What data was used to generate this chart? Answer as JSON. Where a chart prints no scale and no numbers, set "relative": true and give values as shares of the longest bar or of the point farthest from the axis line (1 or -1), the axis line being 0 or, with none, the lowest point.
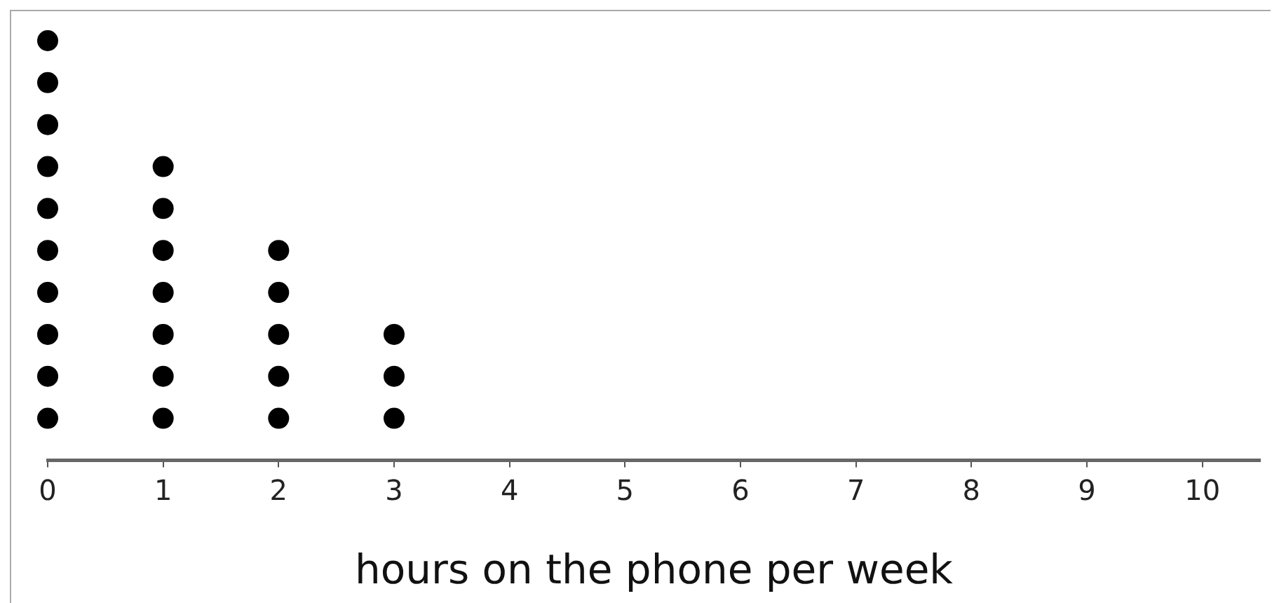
{
  "chart_data": {
    "type": "scatter",
    "xlabel": "hours on the phone per week",
    "relative": true,
    "marker": "circle",
    "color": "#000000",
    "x": [
      0,
      0,
      0,
      0,
      0,
      0,
      0,
      0,
      0,
      0,
      1,
      1,
      1,
      1,
      1,
      1,
      1,
      2,
      2,
      2,
      2,
      2,
      3,
      3,
      3
    ],
    "values": [
      0.1,
      0.2,
      0.3,
      0.4,
      0.5,
      0.6,
      0.7,
      0.8,
      0.9,
      1.0,
      0.1,
      0.2,
      0.3,
      0.4,
      0.5,
      0.6,
      0.7,
      0.1,
      0.2,
      0.3,
      0.4,
      0.5,
      0.1,
      0.2,
      0.3
    ],
    "xlim": [
      0,
      10.5
    ],
    "xticks": [
      0,
      1,
      2,
      3,
      4,
      5,
      6,
      7,
      8,
      9,
      10
    ]
  }
}
